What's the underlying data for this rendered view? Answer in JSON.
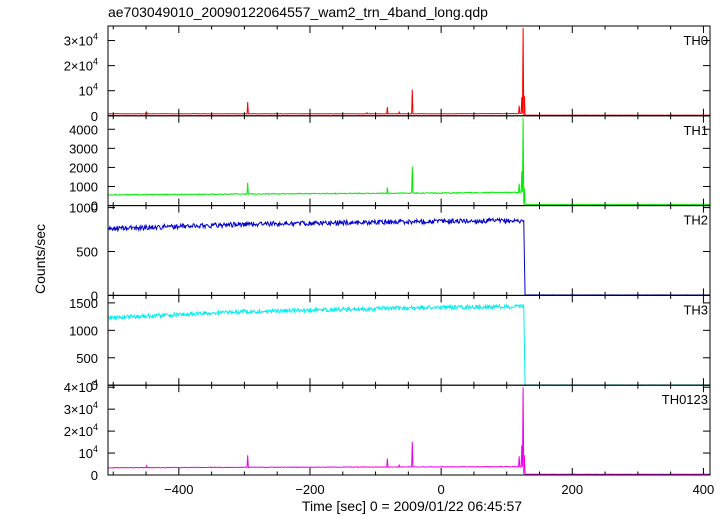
{
  "title": "ae703049010_20090122064557_wam2_trn_4band_long.qdp",
  "ylabel": "Counts/sec",
  "xlabel": "Time [sec] 0 = 2009/01/22 06:45:57",
  "chart_data": {
    "type": "line",
    "title": "ae703049010_20090122064557_wam2_trn_4band_long.qdp",
    "xlabel": "Time [sec] 0 = 2009/01/22 06:45:57",
    "ylabel": "Counts/sec",
    "xlim": [
      -508,
      410
    ],
    "x_ticks": [
      -400,
      -200,
      0,
      200,
      400
    ],
    "x_tick_labels": [
      "−400",
      "−200",
      "0",
      "200",
      "400"
    ],
    "grid": false,
    "panels": [
      {
        "name": "TH0",
        "color": "#ff0000",
        "ylim": [
          0,
          35000
        ],
        "yticks": [
          0,
          10000,
          20000,
          30000
        ],
        "ytick_labels": [
          {
            "m": "0",
            "e": ""
          },
          {
            "m": "10",
            "e": "4"
          },
          {
            "m": "2×10",
            "e": "4"
          },
          {
            "m": "3×10",
            "e": "4"
          }
        ],
        "base": [
          [
            -508,
            800
          ],
          [
            -300,
            800
          ],
          [
            0,
            800
          ],
          [
            125,
            900
          ]
        ],
        "noise": 60,
        "spikes": [
          [
            -449,
            1500
          ],
          [
            -295,
            5500
          ],
          [
            -113,
            1200
          ],
          [
            -82,
            3500
          ],
          [
            -64,
            1500
          ],
          [
            -44,
            10500
          ],
          [
            119,
            4000
          ],
          [
            123,
            7500
          ],
          [
            125,
            35000
          ],
          [
            127,
            8000
          ]
        ],
        "after": 250
      },
      {
        "name": "TH1",
        "color": "#00ee00",
        "ylim": [
          0,
          4600
        ],
        "yticks": [
          0,
          1000,
          2000,
          3000,
          4000
        ],
        "ytick_labels": [
          {
            "m": "0",
            "e": ""
          },
          {
            "m": "1000",
            "e": ""
          },
          {
            "m": "2000",
            "e": ""
          },
          {
            "m": "3000",
            "e": ""
          },
          {
            "m": "4000",
            "e": ""
          }
        ],
        "base": [
          [
            -508,
            560
          ],
          [
            -300,
            610
          ],
          [
            0,
            660
          ],
          [
            125,
            700
          ]
        ],
        "noise": 25,
        "spikes": [
          [
            -295,
            1200
          ],
          [
            -82,
            950
          ],
          [
            -44,
            2050
          ],
          [
            119,
            1150
          ],
          [
            123,
            1800
          ],
          [
            125,
            4600
          ],
          [
            127,
            900
          ]
        ],
        "after": 60
      },
      {
        "name": "TH2",
        "color": "#0000cc",
        "ylim": [
          0,
          1000
        ],
        "yticks": [
          0,
          500,
          1000
        ],
        "ytick_labels": [
          {
            "m": "0",
            "e": ""
          },
          {
            "m": "500",
            "e": ""
          },
          {
            "m": "1000",
            "e": ""
          }
        ],
        "base": [
          [
            -508,
            760
          ],
          [
            -300,
            810
          ],
          [
            0,
            845
          ],
          [
            125,
            850
          ]
        ],
        "noise": 28,
        "spikes": [
          [
            126,
            850
          ],
          [
            127,
            400
          ]
        ],
        "after": 5
      },
      {
        "name": "TH3",
        "color": "#00eeee",
        "ylim": [
          0,
          1600
        ],
        "yticks": [
          0,
          500,
          1000,
          1500
        ],
        "ytick_labels": [
          {
            "m": "0",
            "e": ""
          },
          {
            "m": "500",
            "e": ""
          },
          {
            "m": "1000",
            "e": ""
          },
          {
            "m": "1500",
            "e": ""
          }
        ],
        "base": [
          [
            -508,
            1230
          ],
          [
            -300,
            1340
          ],
          [
            0,
            1420
          ],
          [
            125,
            1430
          ]
        ],
        "noise": 38,
        "spikes": [
          [
            126,
            1430
          ],
          [
            127,
            700
          ]
        ],
        "after": 5
      },
      {
        "name": "TH0123",
        "color": "#ee00ee",
        "ylim": [
          0,
          40000
        ],
        "yticks": [
          0,
          10000,
          20000,
          30000,
          40000
        ],
        "ytick_labels": [
          {
            "m": "0",
            "e": ""
          },
          {
            "m": "10",
            "e": "4"
          },
          {
            "m": "2×10",
            "e": "4"
          },
          {
            "m": "3×10",
            "e": "4"
          },
          {
            "m": "4×10",
            "e": "4"
          }
        ],
        "base": [
          [
            -508,
            3300
          ],
          [
            -300,
            3500
          ],
          [
            0,
            3700
          ],
          [
            125,
            3800
          ]
        ],
        "noise": 120,
        "spikes": [
          [
            -449,
            4200
          ],
          [
            -295,
            9000
          ],
          [
            -82,
            7500
          ],
          [
            -64,
            4500
          ],
          [
            -44,
            15000
          ],
          [
            119,
            8500
          ],
          [
            123,
            13500
          ],
          [
            125,
            40000
          ],
          [
            127,
            9000
          ]
        ],
        "after": 350
      }
    ]
  }
}
